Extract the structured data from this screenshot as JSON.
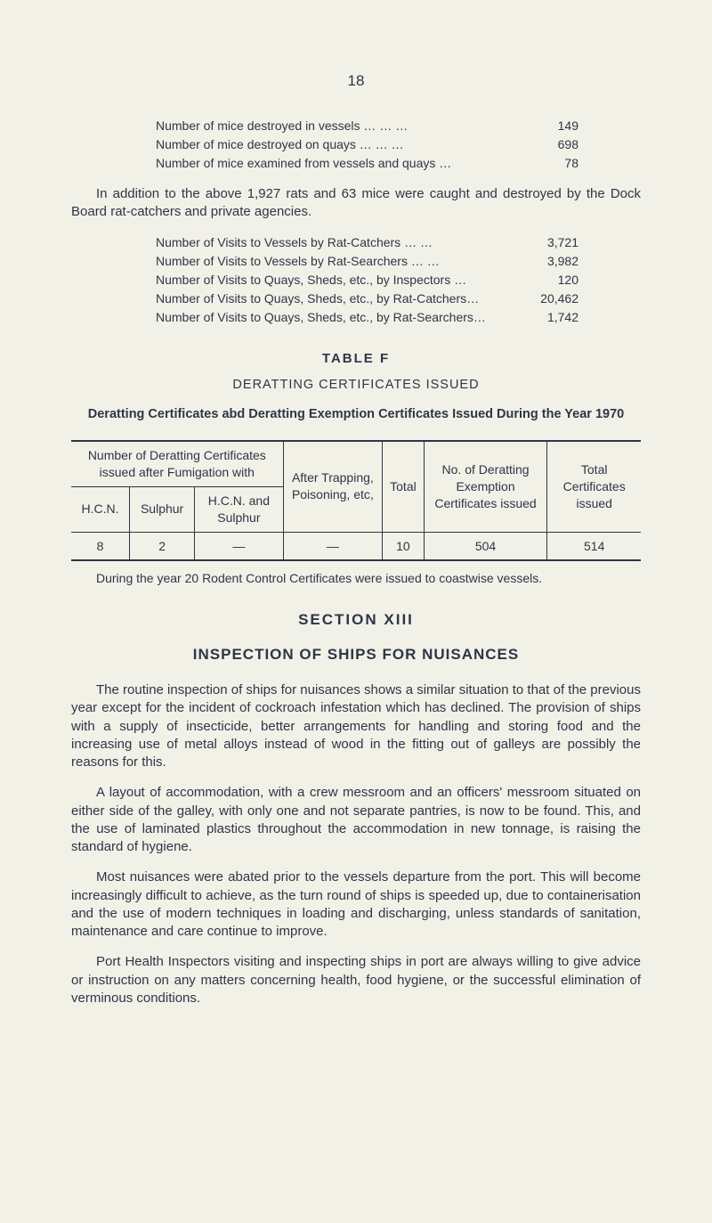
{
  "page_number": "18",
  "mice_stats": [
    {
      "label": "Number of mice destroyed in vessels",
      "dots": "…   …   …",
      "value": "149"
    },
    {
      "label": "Number of mice destroyed on quays",
      "dots": "…   …   …",
      "value": "698"
    },
    {
      "label": "Number of mice examined from vessels and quays",
      "dots": "…",
      "value": "78"
    }
  ],
  "addition_para": "In addition to the above 1,927 rats and 63 mice were caught and destroyed by the Dock Board rat-catchers and private agencies.",
  "visit_stats": [
    {
      "label": "Number of Visits to Vessels by Rat-Catchers",
      "dots": "…   …",
      "value": "3,721"
    },
    {
      "label": "Number of Visits to Vessels by Rat-Searchers",
      "dots": "…   …",
      "value": "3,982"
    },
    {
      "label": "Number of Visits to Quays, Sheds, etc., by Inspectors",
      "dots": "…",
      "value": "120"
    },
    {
      "label": "Number of Visits to Quays, Sheds, etc., by Rat-Catchers…",
      "dots": "",
      "value": "20,462"
    },
    {
      "label": "Number of Visits to Quays, Sheds, etc., by Rat-Searchers…",
      "dots": "",
      "value": "1,742"
    }
  ],
  "tableF": {
    "title": "TABLE F",
    "subtitle": "DERATTING CERTIFICATES ISSUED",
    "caption": "Deratting Certificates abd Deratting Exemption Certificates Issued During the Year 1970",
    "header_group": "Number of Deratting Certificates issued after Fumigation with",
    "header_after": "After Trapping, Poisoning, etc,",
    "header_total": "Total",
    "header_noof": "No. of Deratting Exemption Certificates issued",
    "header_totalcerts": "Total Certificates issued",
    "sub_hcn": "H.C.N.",
    "sub_sulphur": "Sulphur",
    "sub_hcn_sulphur": "H.C.N. and Sulphur",
    "row": {
      "hcn": "8",
      "sulphur": "2",
      "hcn_sulphur": "—",
      "after": "—",
      "total": "10",
      "noof": "504",
      "totalcerts": "514"
    },
    "note": "During the year 20 Rodent Control Certificates were issued to coastwise vessels."
  },
  "section13": {
    "title": "SECTION XIII",
    "subtitle": "INSPECTION OF SHIPS FOR NUISANCES",
    "paras": [
      "The routine inspection of ships for nuisances shows a similar situation to that of the previous year except for the incident of cockroach infestation which has declined. The provision of ships with a supply of insecticide, better arrangements for handling and storing food and the increasing use of metal alloys instead of wood in the fitting out of galleys are possibly the reasons for this.",
      "A layout of accommodation, with a crew messroom and an officers' messroom situated on either side of the galley, with only one and not separate pantries, is now to be found. This, and the use of laminated plastics throughout the accommodation in new tonnage, is raising the standard of hygiene.",
      "Most nuisances were abated prior to the vessels departure from the port. This will become increasingly difficult to achieve, as the turn round of ships is speeded up, due to containerisation and the use of modern techniques in loading and discharging, unless standards of sanitation, maintenance and care continue to improve.",
      "Port Health Inspectors visiting and inspecting ships in port are always willing to give advice or instruction on any matters concerning health, food hygiene, or the successful elimination of verminous conditions."
    ]
  },
  "colors": {
    "bg": "#f2f1e7",
    "text": "#2e3547"
  }
}
